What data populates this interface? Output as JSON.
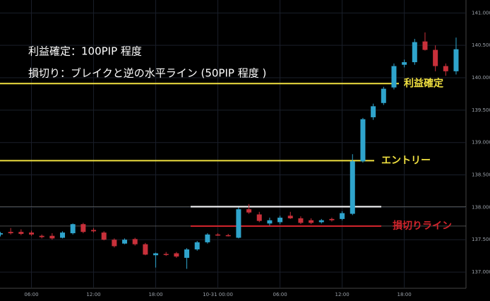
{
  "chart_data": {
    "type": "candlestick",
    "up_color": "#2fa4cc",
    "down_color": "#c8303a",
    "categories": [
      null,
      null,
      null,
      "06:00",
      null,
      null,
      null,
      null,
      null,
      "12:00",
      null,
      null,
      null,
      null,
      null,
      "18:00",
      null,
      null,
      null,
      null,
      null,
      "10-31 00:00",
      null,
      null,
      null,
      null,
      null,
      "06:00",
      null,
      null,
      null,
      null,
      null,
      "12:00",
      null,
      null,
      null,
      null,
      null,
      "18:00",
      null,
      null,
      null,
      null,
      null
    ],
    "open": [
      137.58,
      137.62,
      137.62,
      137.61,
      137.56,
      137.56,
      137.53,
      137.6,
      137.74,
      137.65,
      137.61,
      137.5,
      137.44,
      137.51,
      137.43,
      137.26,
      137.28,
      137.29,
      137.22,
      137.35,
      137.46,
      137.58,
      137.57,
      137.53,
      137.97,
      137.89,
      137.75,
      137.77,
      137.87,
      137.83,
      137.8,
      137.77,
      137.82,
      137.82,
      137.9,
      138.71,
      139.39,
      139.61,
      139.85,
      140.2,
      140.24,
      140.56,
      140.43,
      140.18,
      140.1
    ],
    "high": [
      137.62,
      137.68,
      137.66,
      137.64,
      137.58,
      137.6,
      137.63,
      137.75,
      137.76,
      137.68,
      137.63,
      137.52,
      137.52,
      137.53,
      137.45,
      137.3,
      137.31,
      137.31,
      137.37,
      137.48,
      137.6,
      137.6,
      137.59,
      138.0,
      138.05,
      137.93,
      137.84,
      137.87,
      137.93,
      137.86,
      137.83,
      137.82,
      137.84,
      137.94,
      138.82,
      139.38,
      139.6,
      139.86,
      140.22,
      140.28,
      140.6,
      140.7,
      140.5,
      140.22,
      140.62
    ],
    "low": [
      137.55,
      137.58,
      137.57,
      137.56,
      137.52,
      137.5,
      137.52,
      137.58,
      137.6,
      137.61,
      137.49,
      137.38,
      137.43,
      137.41,
      137.26,
      137.07,
      137.25,
      137.22,
      137.05,
      137.33,
      137.44,
      137.56,
      137.55,
      137.52,
      137.9,
      137.77,
      137.72,
      137.74,
      137.82,
      137.74,
      137.74,
      137.75,
      137.78,
      137.8,
      137.88,
      138.69,
      139.35,
      139.58,
      139.82,
      140.16,
      140.2,
      140.42,
      140.1,
      140.03,
      140.05
    ],
    "close": [
      137.6,
      137.6,
      137.59,
      137.58,
      137.54,
      137.52,
      137.61,
      137.74,
      137.62,
      137.63,
      137.5,
      137.4,
      137.5,
      137.43,
      137.27,
      137.29,
      137.27,
      137.24,
      137.35,
      137.46,
      137.58,
      137.57,
      137.56,
      137.97,
      137.92,
      137.79,
      137.8,
      137.84,
      137.83,
      137.76,
      137.76,
      137.8,
      137.8,
      137.91,
      138.71,
      139.36,
      139.56,
      139.83,
      140.18,
      140.24,
      140.55,
      140.43,
      140.18,
      140.1,
      140.44
    ],
    "ylim": [
      136.75,
      141.2
    ],
    "yticks": [
      {
        "value": 137.0,
        "label": "137.000"
      },
      {
        "value": 137.5,
        "label": "137.500"
      },
      {
        "value": 138.0,
        "label": "138.000"
      },
      {
        "value": 138.5,
        "label": "138.500"
      },
      {
        "value": 139.0,
        "label": "139.000"
      },
      {
        "value": 139.5,
        "label": "139.500"
      },
      {
        "value": 140.0,
        "label": "140.000"
      },
      {
        "value": 140.5,
        "label": "140.500"
      },
      {
        "value": 141.0,
        "label": "141.000"
      }
    ],
    "grid": true,
    "annotations": [
      "利益確定：100PIP 程度",
      "損切り：ブレイクと逆の水平ライン (50PIP 程度 )"
    ],
    "levels": [
      {
        "value": 139.91,
        "label": "利益確定",
        "color": "#f0e040"
      },
      {
        "value": 138.72,
        "label": "エントリー",
        "color": "#f0e040"
      },
      {
        "value": 138.01,
        "color": "#ffffff"
      },
      {
        "value": 137.71,
        "label": "損切りライン",
        "color": "#d0242c"
      }
    ]
  }
}
